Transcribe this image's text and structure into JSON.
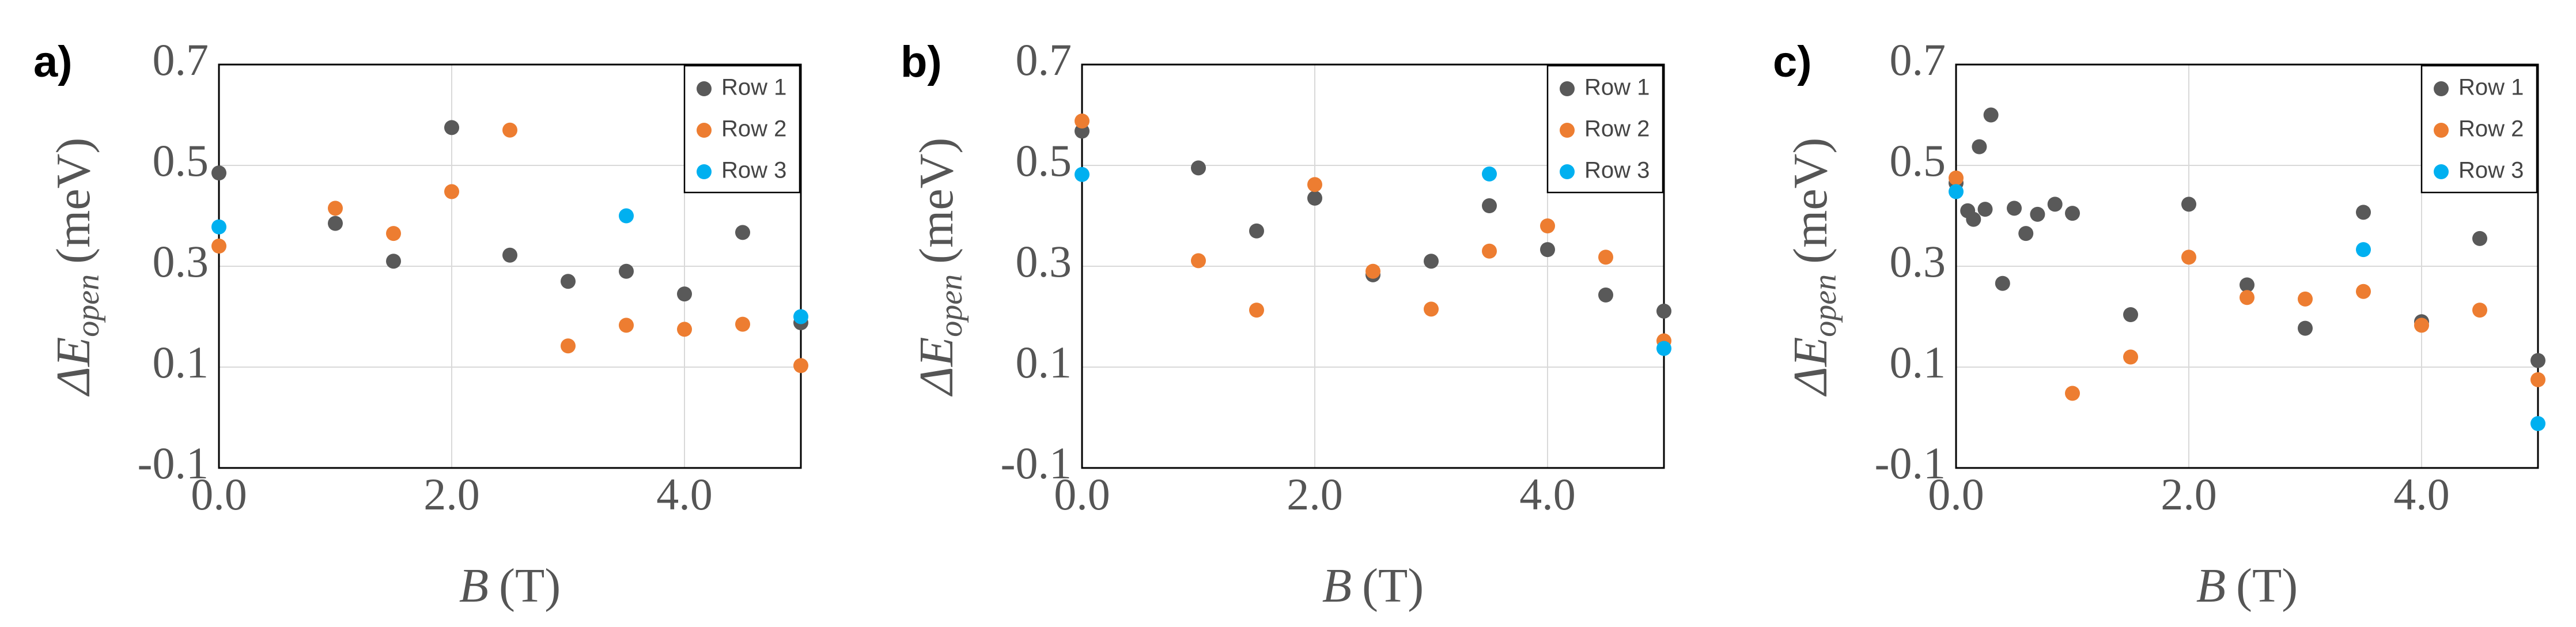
{
  "colors": {
    "Row 1": "#595959",
    "Row 2": "#ED7D31",
    "Row 3": "#00B0F0"
  },
  "chart_data": [
    {
      "panel_label": "a)",
      "type": "scatter",
      "xlabel_symbol": "B",
      "xlabel_unit": "(T)",
      "ylabel_symbol": "ΔE",
      "ylabel_subscript": "open",
      "ylabel_unit": "(meV)",
      "xlim": [
        0,
        5
      ],
      "ylim": [
        -0.1,
        0.7
      ],
      "xticks": [
        "0.0",
        "2.0",
        "4.0"
      ],
      "yticks": [
        "0.7",
        "0.5",
        "0.3",
        "0.1",
        "-0.1"
      ],
      "grid": true,
      "legend_position": "top-right",
      "series": [
        {
          "name": "Row 1",
          "points": [
            [
              0,
              0.485
            ],
            [
              1.0,
              0.385
            ],
            [
              1.5,
              0.31
            ],
            [
              2.0,
              0.575
            ],
            [
              2.5,
              0.322
            ],
            [
              3.0,
              0.27
            ],
            [
              3.5,
              0.29
            ],
            [
              4.0,
              0.245
            ],
            [
              4.5,
              0.367
            ],
            [
              5.0,
              0.188
            ]
          ]
        },
        {
          "name": "Row 2",
          "points": [
            [
              0,
              0.34
            ],
            [
              1.0,
              0.415
            ],
            [
              1.5,
              0.365
            ],
            [
              2.0,
              0.448
            ],
            [
              2.5,
              0.57
            ],
            [
              3.0,
              0.142
            ],
            [
              3.5,
              0.183
            ],
            [
              4.0,
              0.175
            ],
            [
              4.5,
              0.185
            ],
            [
              5.0,
              0.103
            ]
          ]
        },
        {
          "name": "Row 3",
          "points": [
            [
              0,
              0.378
            ],
            [
              3.5,
              0.4
            ],
            [
              5.0,
              0.2
            ]
          ]
        }
      ]
    },
    {
      "panel_label": "b)",
      "type": "scatter",
      "xlabel_symbol": "B",
      "xlabel_unit": "(T)",
      "ylabel_symbol": "ΔE",
      "ylabel_subscript": "open",
      "ylabel_unit": "(meV)",
      "xlim": [
        0,
        5
      ],
      "ylim": [
        -0.1,
        0.7
      ],
      "xticks": [
        "0.0",
        "2.0",
        "4.0"
      ],
      "yticks": [
        "0.7",
        "0.5",
        "0.3",
        "0.1",
        "-0.1"
      ],
      "grid": true,
      "legend_position": "top-right",
      "series": [
        {
          "name": "Row 1",
          "points": [
            [
              0,
              0.568
            ],
            [
              1.0,
              0.495
            ],
            [
              1.5,
              0.37
            ],
            [
              2.0,
              0.435
            ],
            [
              2.5,
              0.283
            ],
            [
              3.0,
              0.31
            ],
            [
              3.5,
              0.42
            ],
            [
              4.0,
              0.333
            ],
            [
              4.5,
              0.243
            ],
            [
              5.0,
              0.211
            ]
          ]
        },
        {
          "name": "Row 2",
          "points": [
            [
              0,
              0.588
            ],
            [
              1.0,
              0.311
            ],
            [
              1.5,
              0.213
            ],
            [
              2.0,
              0.462
            ],
            [
              2.5,
              0.29
            ],
            [
              3.0,
              0.215
            ],
            [
              3.5,
              0.33
            ],
            [
              4.0,
              0.38
            ],
            [
              4.5,
              0.318
            ],
            [
              5.0,
              0.152
            ]
          ]
        },
        {
          "name": "Row 3",
          "points": [
            [
              0,
              0.482
            ],
            [
              3.5,
              0.483
            ],
            [
              5.0,
              0.137
            ]
          ]
        }
      ]
    },
    {
      "panel_label": "c)",
      "type": "scatter",
      "xlabel_symbol": "B",
      "xlabel_unit": "(T)",
      "ylabel_symbol": "ΔE",
      "ylabel_subscript": "open",
      "ylabel_unit": "(meV)",
      "xlim": [
        0,
        5
      ],
      "ylim": [
        -0.1,
        0.7
      ],
      "xticks": [
        "0.0",
        "2.0",
        "4.0"
      ],
      "yticks": [
        "0.7",
        "0.5",
        "0.3",
        "0.1",
        "-0.1"
      ],
      "grid": true,
      "legend_position": "top-right",
      "series": [
        {
          "name": "Row 1",
          "points": [
            [
              0,
              0.465
            ],
            [
              0.1,
              0.41
            ],
            [
              0.15,
              0.393
            ],
            [
              0.2,
              0.537
            ],
            [
              0.25,
              0.413
            ],
            [
              0.3,
              0.6
            ],
            [
              0.4,
              0.266
            ],
            [
              0.5,
              0.415
            ],
            [
              0.6,
              0.365
            ],
            [
              0.7,
              0.403
            ],
            [
              0.85,
              0.423
            ],
            [
              1.0,
              0.405
            ],
            [
              1.5,
              0.204
            ],
            [
              2.0,
              0.423
            ],
            [
              2.5,
              0.263
            ],
            [
              3.0,
              0.177
            ],
            [
              3.5,
              0.407
            ],
            [
              4.0,
              0.19
            ],
            [
              4.5,
              0.355
            ],
            [
              5.0,
              0.113
            ]
          ]
        },
        {
          "name": "Row 2",
          "points": [
            [
              0,
              0.475
            ],
            [
              1.0,
              0.048
            ],
            [
              1.5,
              0.12
            ],
            [
              2.0,
              0.318
            ],
            [
              2.5,
              0.238
            ],
            [
              3.0,
              0.235
            ],
            [
              3.5,
              0.25
            ],
            [
              4.0,
              0.183
            ],
            [
              4.5,
              0.213
            ],
            [
              5.0,
              0.075
            ]
          ]
        },
        {
          "name": "Row 3",
          "points": [
            [
              0,
              0.448
            ],
            [
              3.5,
              0.333
            ],
            [
              5.0,
              -0.012
            ]
          ]
        }
      ]
    }
  ]
}
